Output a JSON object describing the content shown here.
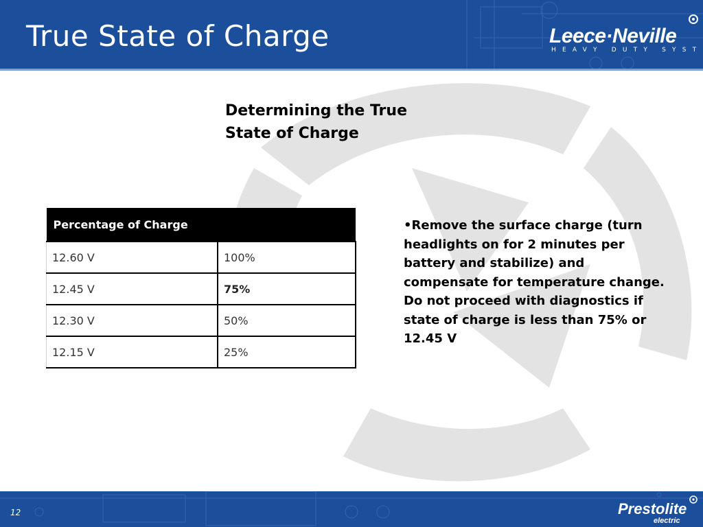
{
  "header": {
    "title": "True State of Charge",
    "brand": "Leece·Neville",
    "brand_tagline": "HEAVY DUTY SYSTEMS"
  },
  "content": {
    "subtitle": "Determining the True State of Charge",
    "table": {
      "header": "Percentage of Charge",
      "rows": [
        {
          "voltage": "12.60 V",
          "percent": "100%"
        },
        {
          "voltage": "12.45 V",
          "percent": "75%"
        },
        {
          "voltage": "12.30 V",
          "percent": "50%"
        },
        {
          "voltage": "12.15 V",
          "percent": "25%"
        }
      ]
    },
    "bullet": "•Remove the surface charge (turn headlights on for 2 minutes per battery and stabilize) and compensate for temperature change. Do not proceed with diagnostics if state of charge is less than 75% or 12.45 V"
  },
  "footer": {
    "page_number": "12",
    "brand": "Prestolite",
    "brand_sub": "electric"
  },
  "colors": {
    "band": "#1b4e9b",
    "watermark": "#e3e3e3"
  }
}
